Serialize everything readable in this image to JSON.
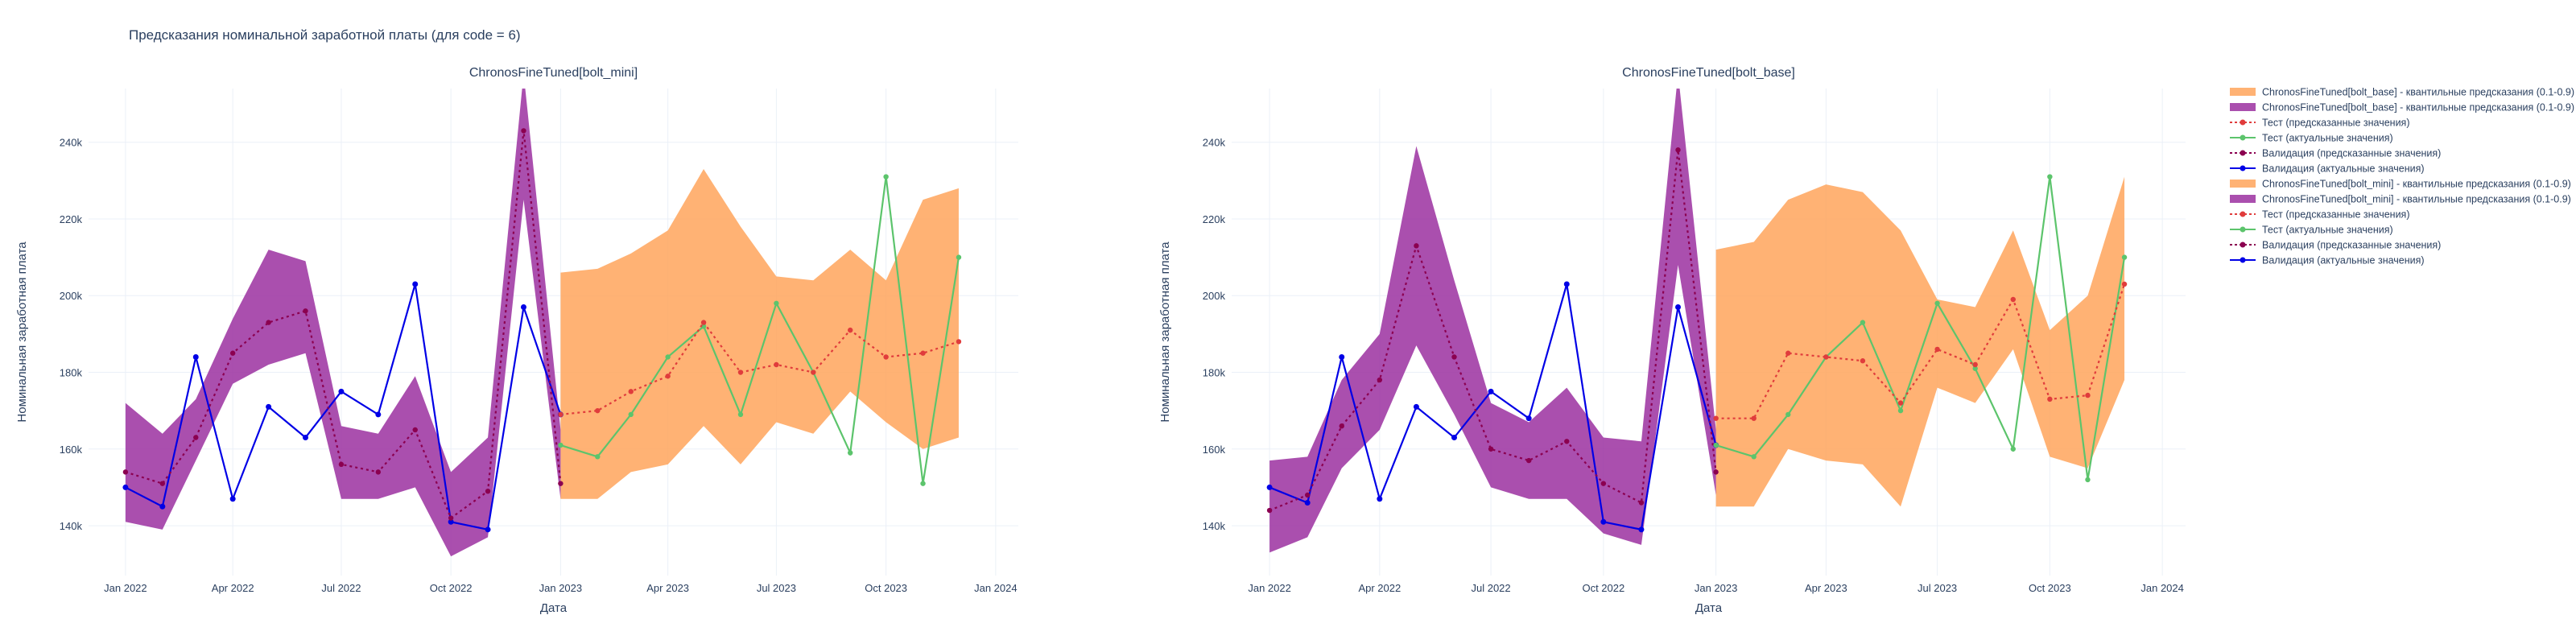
{
  "figure": {
    "title": "Предсказания номинальной заработной платы (для code = 6)",
    "xlabel": "Дата",
    "ylabel": "Номинальная заработная плата"
  },
  "colors": {
    "quantile_val": "#9b30a0",
    "quantile_test": "#ffa45c",
    "val_pred": "#8b0050",
    "val_actual": "#0000e6",
    "test_pred": "#e03c3c",
    "test_actual": "#5cc46c",
    "grid": "#ebf0f8"
  },
  "legend": [
    {
      "label": "ChronosFineTuned[bolt_base] - квантильные предсказания (0.1-0.9)",
      "kind": "band",
      "color": "#ffa45c"
    },
    {
      "label": "ChronosFineTuned[bolt_base] - квантильные предсказания (0.1-0.9)",
      "kind": "band",
      "color": "#9b30a0"
    },
    {
      "label": "Тест (предсказанные значения)",
      "kind": "dotted",
      "color": "#e03c3c"
    },
    {
      "label": "Тест (актуальные значения)",
      "kind": "solid",
      "color": "#5cc46c"
    },
    {
      "label": "Валидация (предсказанные значения)",
      "kind": "dotted",
      "color": "#8b0050"
    },
    {
      "label": "Валидация (актуальные значения)",
      "kind": "solid",
      "color": "#0000e6"
    },
    {
      "label": "ChronosFineTuned[bolt_mini] - квантильные предсказания (0.1-0.9)",
      "kind": "band",
      "color": "#ffa45c"
    },
    {
      "label": "ChronosFineTuned[bolt_mini] - квантильные предсказания (0.1-0.9)",
      "kind": "band",
      "color": "#9b30a0"
    },
    {
      "label": "Тест (предсказанные значения)",
      "kind": "dotted",
      "color": "#e03c3c"
    },
    {
      "label": "Тест (актуальные значения)",
      "kind": "solid",
      "color": "#5cc46c"
    },
    {
      "label": "Валидация (предсказанные значения)",
      "kind": "dotted",
      "color": "#8b0050"
    },
    {
      "label": "Валидация (актуальные значения)",
      "kind": "solid",
      "color": "#0000e6"
    }
  ],
  "chart_data": [
    {
      "type": "line",
      "title": "ChronosFineTuned[bolt_mini]",
      "xlabel": "Дата",
      "ylabel": "Номинальная заработная плата",
      "xlim": [
        "2021-12-01",
        "2024-01-20"
      ],
      "ylim": [
        127000,
        254000
      ],
      "x_ticks": [
        "2022-01-01",
        "2022-04-01",
        "2022-07-01",
        "2022-10-01",
        "2023-01-01",
        "2023-04-01",
        "2023-07-01",
        "2023-10-01",
        "2024-01-01"
      ],
      "x_tick_labels": [
        "Jan 2022",
        "Apr 2022",
        "Jul 2022",
        "Oct 2022",
        "Jan 2023",
        "Apr 2023",
        "Jul 2023",
        "Oct 2023",
        "Jan 2024"
      ],
      "y_ticks": [
        140000,
        160000,
        180000,
        200000,
        220000,
        240000
      ],
      "y_tick_labels": [
        "140k",
        "160k",
        "180k",
        "200k",
        "220k",
        "240k"
      ],
      "grid": true,
      "validation_dates": [
        "2022-01-01",
        "2022-02-01",
        "2022-03-01",
        "2022-04-01",
        "2022-05-01",
        "2022-06-01",
        "2022-07-01",
        "2022-08-01",
        "2022-09-01",
        "2022-10-01",
        "2022-11-01",
        "2022-12-01",
        "2023-01-01"
      ],
      "test_dates": [
        "2023-01-01",
        "2023-02-01",
        "2023-03-01",
        "2023-04-01",
        "2023-05-01",
        "2023-06-01",
        "2023-07-01",
        "2023-08-01",
        "2023-09-01",
        "2023-10-01",
        "2023-11-01",
        "2023-12-01"
      ],
      "series": [
        {
          "role": "val_band",
          "lower": [
            141000,
            139000,
            157000,
            177000,
            182000,
            185000,
            147000,
            147000,
            150000,
            132000,
            137000,
            225000,
            147000
          ],
          "upper": [
            172000,
            164000,
            173000,
            194000,
            212000,
            209000,
            166000,
            164000,
            179000,
            154000,
            163000,
            258000,
            165000
          ]
        },
        {
          "role": "val_pred",
          "values": [
            154000,
            151000,
            163000,
            185000,
            193000,
            196000,
            156000,
            154000,
            165000,
            142000,
            149000,
            243000,
            151000
          ]
        },
        {
          "role": "val_actual",
          "values": [
            150000,
            145000,
            184000,
            147000,
            171000,
            163000,
            175000,
            169000,
            203000,
            141000,
            139000,
            197000,
            169000
          ]
        },
        {
          "role": "test_band",
          "lower": [
            147000,
            147000,
            154000,
            156000,
            166000,
            156000,
            167000,
            164000,
            175000,
            167000,
            160000,
            163000
          ],
          "upper": [
            206000,
            207000,
            211000,
            217000,
            233000,
            218000,
            205000,
            204000,
            212000,
            204000,
            225000,
            228000
          ]
        },
        {
          "role": "test_pred",
          "values": [
            169000,
            170000,
            175000,
            179000,
            193000,
            180000,
            182000,
            180000,
            191000,
            184000,
            185000,
            188000
          ]
        },
        {
          "role": "test_actual",
          "values": [
            161000,
            158000,
            169000,
            184000,
            192000,
            169000,
            198000,
            180000,
            159000,
            231000,
            151000,
            210000
          ]
        }
      ]
    },
    {
      "type": "line",
      "title": "ChronosFineTuned[bolt_base]",
      "xlabel": "Дата",
      "ylabel": "Номинальная заработная плата",
      "xlim": [
        "2021-12-01",
        "2024-01-20"
      ],
      "ylim": [
        127000,
        254000
      ],
      "x_ticks": [
        "2022-01-01",
        "2022-04-01",
        "2022-07-01",
        "2022-10-01",
        "2023-01-01",
        "2023-04-01",
        "2023-07-01",
        "2023-10-01",
        "2024-01-01"
      ],
      "x_tick_labels": [
        "Jan 2022",
        "Apr 2022",
        "Jul 2022",
        "Oct 2022",
        "Jan 2023",
        "Apr 2023",
        "Jul 2023",
        "Oct 2023",
        "Jan 2024"
      ],
      "y_ticks": [
        140000,
        160000,
        180000,
        200000,
        220000,
        240000
      ],
      "y_tick_labels": [
        "140k",
        "160k",
        "180k",
        "200k",
        "220k",
        "240k"
      ],
      "grid": true,
      "validation_dates": [
        "2022-01-01",
        "2022-02-01",
        "2022-03-01",
        "2022-04-01",
        "2022-05-01",
        "2022-06-01",
        "2022-07-01",
        "2022-08-01",
        "2022-09-01",
        "2022-10-01",
        "2022-11-01",
        "2022-12-01",
        "2023-01-01"
      ],
      "test_dates": [
        "2023-01-01",
        "2023-02-01",
        "2023-03-01",
        "2023-04-01",
        "2023-05-01",
        "2023-06-01",
        "2023-07-01",
        "2023-08-01",
        "2023-09-01",
        "2023-10-01",
        "2023-11-01",
        "2023-12-01"
      ],
      "series": [
        {
          "role": "val_band",
          "lower": [
            133000,
            137000,
            155000,
            165000,
            187000,
            169000,
            150000,
            147000,
            147000,
            138000,
            135000,
            208000,
            148000
          ],
          "upper": [
            157000,
            158000,
            178000,
            190000,
            239000,
            204000,
            172000,
            167000,
            176000,
            163000,
            162000,
            258000,
            165000
          ]
        },
        {
          "role": "val_pred",
          "values": [
            144000,
            148000,
            166000,
            178000,
            213000,
            184000,
            160000,
            157000,
            162000,
            151000,
            146000,
            238000,
            154000
          ]
        },
        {
          "role": "val_actual",
          "values": [
            150000,
            146000,
            184000,
            147000,
            171000,
            163000,
            175000,
            168000,
            203000,
            141000,
            139000,
            197000,
            161000
          ]
        },
        {
          "role": "test_band",
          "lower": [
            145000,
            145000,
            160000,
            157000,
            156000,
            145000,
            176000,
            172000,
            186000,
            158000,
            155000,
            178000
          ],
          "upper": [
            212000,
            214000,
            225000,
            229000,
            227000,
            217000,
            199000,
            197000,
            217000,
            191000,
            200000,
            231000
          ]
        },
        {
          "role": "test_pred",
          "values": [
            168000,
            168000,
            185000,
            184000,
            183000,
            172000,
            186000,
            182000,
            199000,
            173000,
            174000,
            203000
          ]
        },
        {
          "role": "test_actual",
          "values": [
            161000,
            158000,
            169000,
            184000,
            193000,
            170000,
            198000,
            181000,
            160000,
            231000,
            152000,
            210000
          ]
        }
      ]
    }
  ]
}
